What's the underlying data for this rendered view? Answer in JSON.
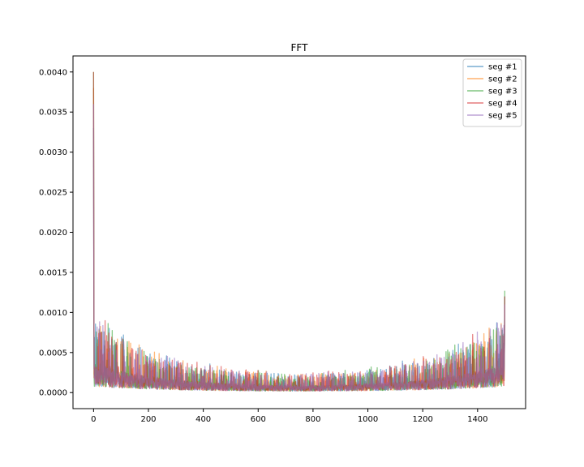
{
  "chart_data": {
    "type": "line",
    "title": "FFT",
    "xlabel": "",
    "ylabel": "",
    "xlim": [
      -75,
      1575
    ],
    "ylim": [
      -0.0002,
      0.0042
    ],
    "x_ticks": [
      0,
      200,
      400,
      600,
      800,
      1000,
      1200,
      1400
    ],
    "x_tick_labels": [
      "0",
      "200",
      "400",
      "600",
      "800",
      "1000",
      "1200",
      "1400"
    ],
    "y_ticks": [
      0.0,
      0.0005,
      0.001,
      0.0015,
      0.002,
      0.0025,
      0.003,
      0.0035,
      0.004
    ],
    "y_tick_labels": [
      "0.0000",
      "0.0005",
      "0.0010",
      "0.0015",
      "0.0020",
      "0.0025",
      "0.0030",
      "0.0035",
      "0.0040"
    ],
    "grid": false,
    "legend_position": "top-right",
    "n_points": 1500,
    "series": [
      {
        "name": "seg #1",
        "color": "#1f77b4",
        "peak": 0.0033,
        "end": 0.0012
      },
      {
        "name": "seg #2",
        "color": "#ff7f0e",
        "peak": 0.0038,
        "end": 0.0011
      },
      {
        "name": "seg #3",
        "color": "#2ca02c",
        "peak": 0.004,
        "end": 0.00127
      },
      {
        "name": "seg #4",
        "color": "#d62728",
        "peak": 0.004,
        "end": 0.0012
      },
      {
        "name": "seg #5",
        "color": "#9467bd",
        "peak": 0.0036,
        "end": 0.0011
      }
    ]
  }
}
